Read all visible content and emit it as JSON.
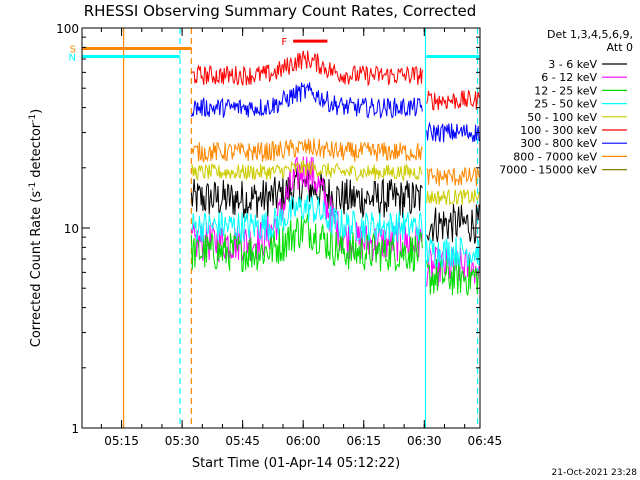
{
  "chart_data": {
    "type": "line",
    "title": "RHESSI Observing Summary Count Rates, Corrected",
    "xlabel": "Start Time (01-Apr-14 05:12:22)",
    "ylabel_main": "Corrected Count Rate (s",
    "ylabel_sup1": "-1",
    "ylabel_mid": " detector",
    "ylabel_sup2": "-1",
    "ylabel_end": ")",
    "y_scale": "log",
    "ylim": [
      1,
      100
    ],
    "xlim_minutes": [
      5.2,
      103.8
    ],
    "x_ticks": [
      {
        "label": "05:15",
        "minute": 15
      },
      {
        "label": "05:30",
        "minute": 30
      },
      {
        "label": "05:45",
        "minute": 45
      },
      {
        "label": "06:00",
        "minute": 60
      },
      {
        "label": "06:15",
        "minute": 75
      },
      {
        "label": "06:30",
        "minute": 90
      },
      {
        "label": "06:45",
        "minute": 105
      }
    ],
    "y_ticks": [
      {
        "label": "1",
        "value": 1
      },
      {
        "label": "10",
        "value": 10
      },
      {
        "label": "100",
        "value": 100
      }
    ],
    "legend": {
      "placement": "right",
      "header1": "Det 1,3,4,5,6,9,",
      "header2": "Att 0"
    },
    "series": [
      {
        "name": "3 - 6 keV",
        "color": "#000000",
        "level": 14.0,
        "noise": 0.1,
        "peak": 0.15
      },
      {
        "name": "6 - 12 keV",
        "color": "#ff00ff",
        "level": 8.5,
        "noise": 0.1,
        "peak": 1.3
      },
      {
        "name": "12 - 25 keV",
        "color": "#00dd00",
        "level": 7.6,
        "noise": 0.1,
        "peak": 0.3
      },
      {
        "name": "25 - 50 keV",
        "color": "#00ffff",
        "level": 10.2,
        "noise": 0.08,
        "peak": 0.25
      },
      {
        "name": "50 - 100 keV",
        "color": "#cccc00",
        "level": 19.0,
        "noise": 0.04,
        "peak": 0.05
      },
      {
        "name": "100 - 300 keV",
        "color": "#ff0000",
        "level": 58.0,
        "noise": 0.05,
        "peak": 0.2
      },
      {
        "name": "300 - 800 keV",
        "color": "#0000ff",
        "level": 40.0,
        "noise": 0.05,
        "peak": 0.2
      },
      {
        "name": "800 - 7000 keV",
        "color": "#ff8800",
        "level": 24.0,
        "noise": 0.05,
        "peak": 0.05
      },
      {
        "name": "7000 - 15000 keV",
        "color": "#808000",
        "level": 1.0,
        "noise": 0.0,
        "peak": 0.0
      }
    ],
    "data_start_minute": 32.3,
    "data_end_minute": 103.6,
    "gap_minute": 90.0,
    "peak_minute": 60.5,
    "flags": [
      {
        "label": "S",
        "color": "#ff8800",
        "y_value": 79.0,
        "start_minute": 5.2,
        "end_minute": 32.3
      },
      {
        "label": "N",
        "color": "#00ffff",
        "y_value": 72.0,
        "start_minute": 5.2,
        "end_minute": 29.5
      },
      {
        "label": "",
        "color": "#00ffff",
        "y_value": 72.0,
        "start_minute": 90.5,
        "end_minute": 103.6
      },
      {
        "label": "F",
        "color": "#ff0000",
        "y_value": 86.0,
        "start_minute": 57.5,
        "end_minute": 66.0
      }
    ],
    "orbit_lines": [
      {
        "minute": 15.5,
        "color": "#ff8800",
        "style": "solid"
      },
      {
        "minute": 29.5,
        "color": "#00ffff",
        "style": "dashed"
      },
      {
        "minute": 32.3,
        "color": "#ff8800",
        "style": "dashed"
      },
      {
        "minute": 90.3,
        "color": "#00ffff",
        "style": "solid"
      },
      {
        "minute": 103.2,
        "color": "#00ffff",
        "style": "dashed"
      }
    ],
    "footer_date": "21-Oct-2021 23:28"
  }
}
